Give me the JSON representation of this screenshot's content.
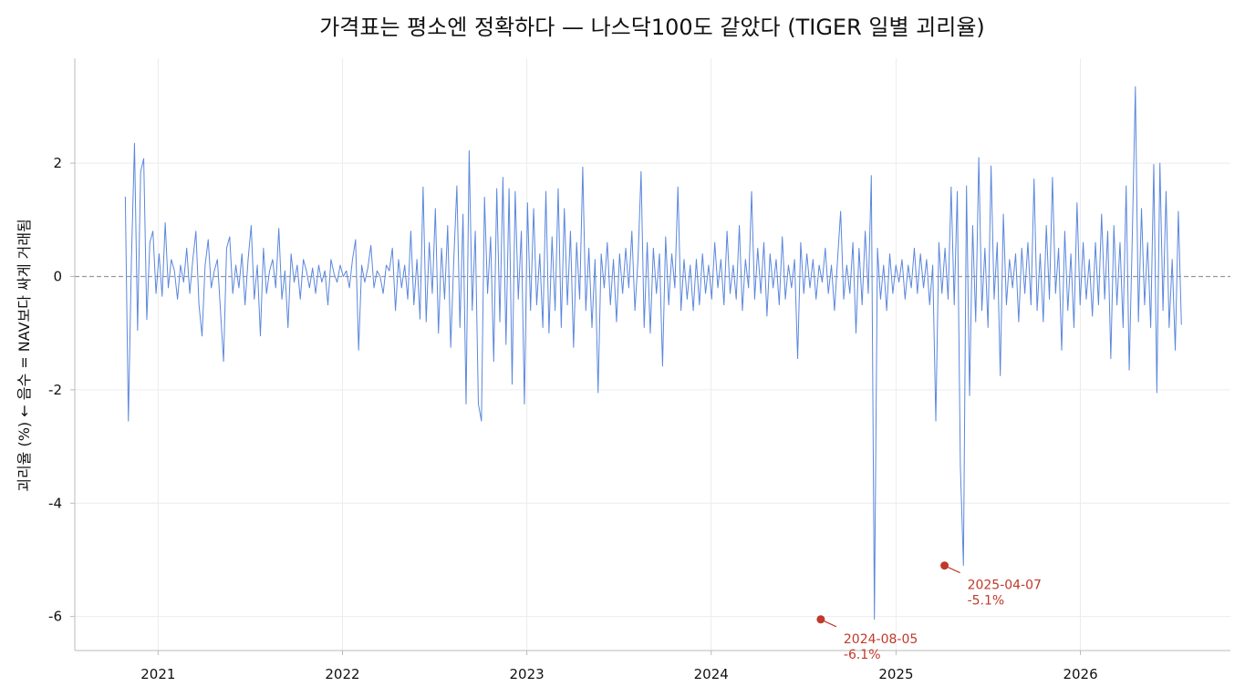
{
  "chart_data": {
    "type": "line",
    "title": "가격표는 평소엔 정확하다 — 나스닥100도 같았다 (TIGER 일별 괴리율)",
    "xlabel": "",
    "ylabel": "괴리율 (%)  ← 음수 = NAV보다 싸게 거래됨",
    "x_ticks": [
      "2021",
      "2022",
      "2023",
      "2024",
      "2025",
      "2026"
    ],
    "y_ticks": [
      2,
      0,
      -2,
      -4,
      -6
    ],
    "y_tick_labels": [
      "2",
      "0",
      "-2",
      "-4",
      "-6"
    ],
    "xlim": [
      "2020-07-20",
      "2026-10-25"
    ],
    "ylim": [
      -6.6,
      3.85
    ],
    "grid": true,
    "zero_line": {
      "y": 0,
      "style": "dashed",
      "color": "#999999"
    },
    "series": [
      {
        "color": "#5b87dd",
        "x_start": "2020-10-28",
        "x_end": "2026-07-20",
        "values": [
          1.41,
          -2.55,
          0.3,
          2.35,
          -0.95,
          1.85,
          2.08,
          -0.76,
          0.6,
          0.8,
          -0.3,
          0.4,
          -0.35,
          0.95,
          -0.2,
          0.3,
          0.1,
          -0.4,
          0.2,
          -0.1,
          0.5,
          -0.3,
          0.3,
          0.8,
          -0.5,
          -1.05,
          0.2,
          0.65,
          -0.2,
          0.1,
          0.3,
          -0.6,
          -1.5,
          0.5,
          0.7,
          -0.3,
          0.2,
          -0.2,
          0.4,
          -0.5,
          0.3,
          0.9,
          -0.4,
          0.2,
          -1.05,
          0.5,
          -0.3,
          0.1,
          0.3,
          -0.2,
          0.85,
          -0.4,
          0.1,
          -0.9,
          0.4,
          -0.1,
          0.2,
          -0.4,
          0.3,
          0.1,
          -0.2,
          0.15,
          -0.3,
          0.2,
          -0.1,
          0.1,
          -0.5,
          0.3,
          0.05,
          -0.1,
          0.2,
          0.0,
          0.1,
          -0.2,
          0.3,
          0.65,
          -1.3,
          0.2,
          -0.1,
          0.15,
          0.55,
          -0.2,
          0.1,
          0.0,
          -0.3,
          0.2,
          0.1,
          0.5,
          -0.6,
          0.3,
          -0.2,
          0.2,
          -0.4,
          0.8,
          -0.5,
          0.3,
          -0.75,
          1.58,
          -0.8,
          0.6,
          -0.3,
          1.2,
          -1.0,
          0.5,
          -0.4,
          0.9,
          -1.25,
          0.3,
          1.6,
          -0.9,
          1.1,
          -2.25,
          2.22,
          -0.6,
          0.8,
          -2.25,
          -2.55,
          1.4,
          -0.3,
          0.7,
          -1.5,
          1.55,
          -0.8,
          1.75,
          -1.2,
          1.55,
          -1.9,
          1.5,
          -0.4,
          0.8,
          -2.25,
          1.3,
          -0.6,
          1.2,
          -0.5,
          0.4,
          -0.9,
          1.5,
          -1.0,
          0.7,
          -0.6,
          1.55,
          -0.9,
          1.2,
          -0.5,
          0.8,
          -1.25,
          0.6,
          -0.4,
          1.93,
          -0.6,
          0.5,
          -0.9,
          0.3,
          -2.05,
          0.4,
          -0.2,
          0.6,
          -0.5,
          0.3,
          -0.8,
          0.4,
          -0.3,
          0.5,
          -0.2,
          0.8,
          -0.6,
          0.3,
          1.85,
          -0.9,
          0.6,
          -1.0,
          0.5,
          -0.3,
          0.4,
          -1.58,
          0.7,
          -0.5,
          0.4,
          -0.2,
          1.58,
          -0.6,
          0.3,
          -0.4,
          0.2,
          -0.6,
          0.3,
          -0.5,
          0.4,
          -0.3,
          0.2,
          -0.4,
          0.6,
          -0.2,
          0.3,
          -0.5,
          0.8,
          -0.3,
          0.2,
          -0.4,
          0.9,
          -0.6,
          0.3,
          -0.2,
          1.5,
          -0.4,
          0.5,
          -0.3,
          0.6,
          -0.7,
          0.4,
          -0.2,
          0.3,
          -0.5,
          0.7,
          -0.4,
          0.2,
          -0.2,
          0.3,
          -1.45,
          0.6,
          -0.3,
          0.4,
          -0.2,
          0.3,
          -0.4,
          0.2,
          -0.1,
          0.5,
          -0.3,
          0.2,
          -0.6,
          0.3,
          1.15,
          -0.4,
          0.2,
          -0.3,
          0.6,
          -1.0,
          0.5,
          -0.5,
          0.8,
          -0.3,
          1.78,
          -6.05,
          0.5,
          -0.4,
          0.2,
          -0.6,
          0.4,
          -0.3,
          0.2,
          -0.1,
          0.3,
          -0.4,
          0.2,
          -0.2,
          0.5,
          -0.3,
          0.4,
          -0.2,
          0.3,
          -0.5,
          0.2,
          -2.55,
          0.6,
          -0.3,
          0.5,
          -0.4,
          1.58,
          -0.5,
          1.5,
          -3.35,
          -5.1,
          1.6,
          -2.1,
          0.9,
          -0.8,
          2.1,
          -0.6,
          0.5,
          -0.9,
          1.95,
          -0.4,
          0.6,
          -1.75,
          1.1,
          -0.5,
          0.3,
          -0.2,
          0.4,
          -0.8,
          0.5,
          -0.3,
          0.6,
          -0.5,
          1.72,
          -0.6,
          0.4,
          -0.8,
          0.9,
          -0.4,
          1.75,
          -0.3,
          0.5,
          -1.3,
          0.8,
          -0.6,
          0.4,
          -0.9,
          1.3,
          -0.5,
          0.6,
          -0.4,
          0.3,
          -0.7,
          0.6,
          -0.5,
          1.1,
          -0.4,
          0.8,
          -1.45,
          0.9,
          -0.5,
          0.6,
          -0.9,
          1.6,
          -1.65,
          0.7,
          3.35,
          -0.8,
          1.2,
          -0.5,
          0.6,
          -0.9,
          1.98,
          -2.05,
          2.0,
          -0.6,
          1.5,
          -0.9,
          0.3,
          -1.3,
          1.15,
          -0.85
        ]
      }
    ],
    "annotations": [
      {
        "date": "2024-08-05",
        "value": -6.05,
        "line1": "2024-08-05",
        "line2": "-6.1%",
        "color": "#c0392b"
      },
      {
        "date": "2025-04-07",
        "value": -5.1,
        "line1": "2025-04-07",
        "line2": "-5.1%",
        "color": "#c0392b"
      }
    ]
  }
}
